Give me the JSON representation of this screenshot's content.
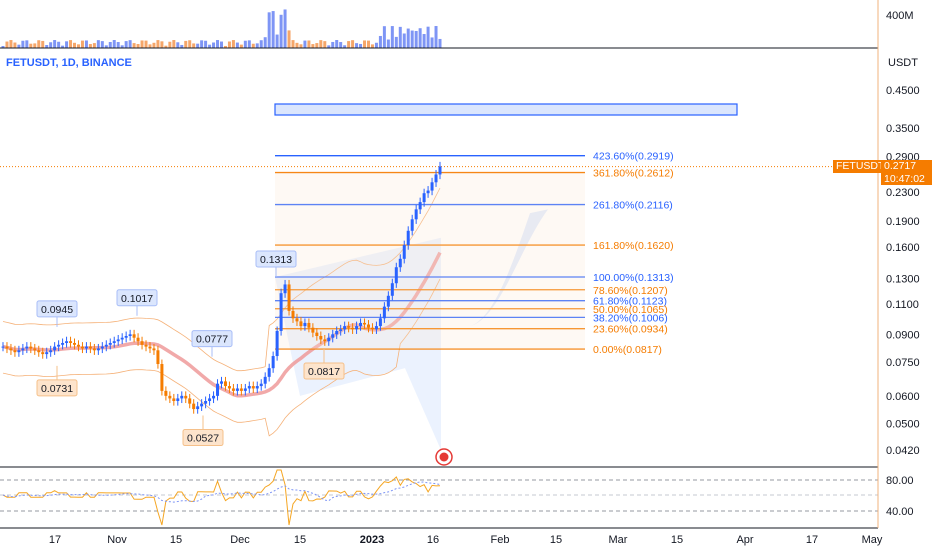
{
  "symbol": "FETUSDT, 1D, BINANCE",
  "quote_unit": "USDT",
  "volume_axis_label": "400M",
  "ticker_tag": "FETUSDT",
  "last_price": "0.2717",
  "countdown": "10:47:02",
  "colors": {
    "up": "#2962ff",
    "down": "#f57c00",
    "fib_blue": "#2962ff",
    "fib_orange": "#f57c00",
    "ma": "#ef9a9a",
    "rsi": "#f5a623",
    "rsi_ma": "#7e95f5"
  },
  "chart_data": {
    "type": "candlestick",
    "price_axis": {
      "scale": "log",
      "ticks": [
        "0.4500",
        "0.3500",
        "0.2900",
        "0.2300",
        "0.1900",
        "0.1600",
        "0.1300",
        "0.1100",
        "0.0900",
        "0.0750",
        "0.0600",
        "0.0500",
        "0.0420"
      ]
    },
    "time_axis": {
      "ticks": [
        "17",
        "Nov",
        "15",
        "Dec",
        "15",
        "2023",
        "16",
        "Feb",
        "15",
        "Mar",
        "15",
        "Apr",
        "17",
        "May"
      ]
    },
    "fib_levels": [
      {
        "label": "423.60%(0.2919)",
        "value": 0.2919,
        "color": "blue"
      },
      {
        "label": "361.80%(0.2612)",
        "value": 0.2612,
        "color": "orange"
      },
      {
        "label": "261.80%(0.2116)",
        "value": 0.2116,
        "color": "blue"
      },
      {
        "label": "161.80%(0.1620)",
        "value": 0.162,
        "color": "orange"
      },
      {
        "label": "100.00%(0.1313)",
        "value": 0.1313,
        "color": "blue"
      },
      {
        "label": "78.60%(0.1207)",
        "value": 0.1207,
        "color": "orange"
      },
      {
        "label": "61.80%(0.1123)",
        "value": 0.1123,
        "color": "blue"
      },
      {
        "label": "50.00%(0.1065)",
        "value": 0.1065,
        "color": "orange"
      },
      {
        "label": "38.20%(0.1006)",
        "value": 0.1006,
        "color": "blue"
      },
      {
        "label": "23.60%(0.0934)",
        "value": 0.0934,
        "color": "orange"
      },
      {
        "label": "0.00%(0.0817)",
        "value": 0.0817,
        "color": "orange"
      }
    ],
    "callouts": [
      {
        "label": "0.0945",
        "value": 0.0945,
        "kind": "high"
      },
      {
        "label": "0.0731",
        "value": 0.0731,
        "kind": "low"
      },
      {
        "label": "0.1017",
        "value": 0.1017,
        "kind": "high"
      },
      {
        "label": "0.0777",
        "value": 0.0777,
        "kind": "high"
      },
      {
        "label": "0.0527",
        "value": 0.0527,
        "kind": "low"
      },
      {
        "label": "0.1313",
        "value": 0.1313,
        "kind": "high"
      },
      {
        "label": "0.0817",
        "value": 0.0817,
        "kind": "low"
      }
    ],
    "closes": [
      0.083,
      0.082,
      0.081,
      0.08,
      0.081,
      0.082,
      0.083,
      0.082,
      0.081,
      0.08,
      0.079,
      0.08,
      0.081,
      0.083,
      0.084,
      0.085,
      0.086,
      0.085,
      0.084,
      0.083,
      0.082,
      0.083,
      0.082,
      0.081,
      0.082,
      0.083,
      0.084,
      0.085,
      0.086,
      0.087,
      0.088,
      0.089,
      0.09,
      0.088,
      0.086,
      0.084,
      0.083,
      0.082,
      0.081,
      0.074,
      0.062,
      0.06,
      0.059,
      0.058,
      0.059,
      0.06,
      0.059,
      0.057,
      0.055,
      0.056,
      0.057,
      0.058,
      0.059,
      0.06,
      0.065,
      0.066,
      0.064,
      0.063,
      0.062,
      0.063,
      0.062,
      0.063,
      0.064,
      0.063,
      0.064,
      0.065,
      0.068,
      0.072,
      0.078,
      0.092,
      0.118,
      0.125,
      0.105,
      0.1,
      0.098,
      0.095,
      0.097,
      0.094,
      0.091,
      0.089,
      0.087,
      0.086,
      0.088,
      0.09,
      0.092,
      0.093,
      0.095,
      0.094,
      0.093,
      0.095,
      0.097,
      0.096,
      0.094,
      0.093,
      0.095,
      0.1,
      0.108,
      0.116,
      0.126,
      0.14,
      0.148,
      0.162,
      0.178,
      0.192,
      0.205,
      0.215,
      0.228,
      0.232,
      0.245,
      0.258,
      0.272
    ]
  }
}
